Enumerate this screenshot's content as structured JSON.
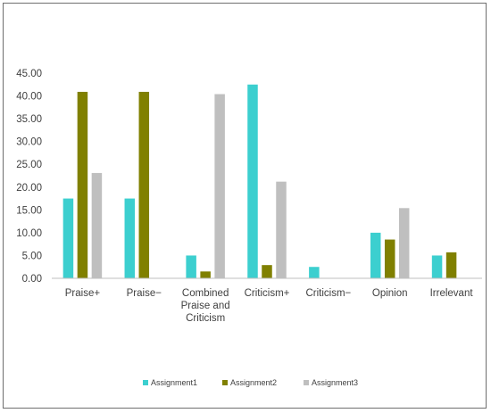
{
  "chart_data": {
    "type": "bar",
    "title": "",
    "xlabel": "",
    "ylabel": "",
    "categories": [
      [
        "Praise+"
      ],
      [
        "Praise−"
      ],
      [
        "Combined",
        "Praise and",
        "Criticism"
      ],
      [
        "Criticism+"
      ],
      [
        "Criticism−"
      ],
      [
        "Opinion"
      ],
      [
        "Irrelevant"
      ]
    ],
    "series": [
      {
        "name": "Assignment1",
        "color": "#3ccfcf",
        "values": [
          17.5,
          17.5,
          5.0,
          42.5,
          2.5,
          10.0,
          5.0
        ]
      },
      {
        "name": "Assignment2",
        "color": "#808000",
        "values": [
          40.9,
          40.9,
          1.5,
          2.9,
          0,
          8.5,
          5.7
        ]
      },
      {
        "name": "Assignment3",
        "color": "#bfbfbf",
        "values": [
          23.1,
          0,
          40.4,
          21.2,
          0,
          15.4,
          0
        ]
      }
    ],
    "ylim": [
      0,
      45
    ],
    "yticks": [
      "0.00",
      "5.00",
      "10.00",
      "15.00",
      "20.00",
      "25.00",
      "30.00",
      "35.00",
      "40.00",
      "45.00"
    ],
    "grid": false,
    "legend_position": "bottom"
  }
}
